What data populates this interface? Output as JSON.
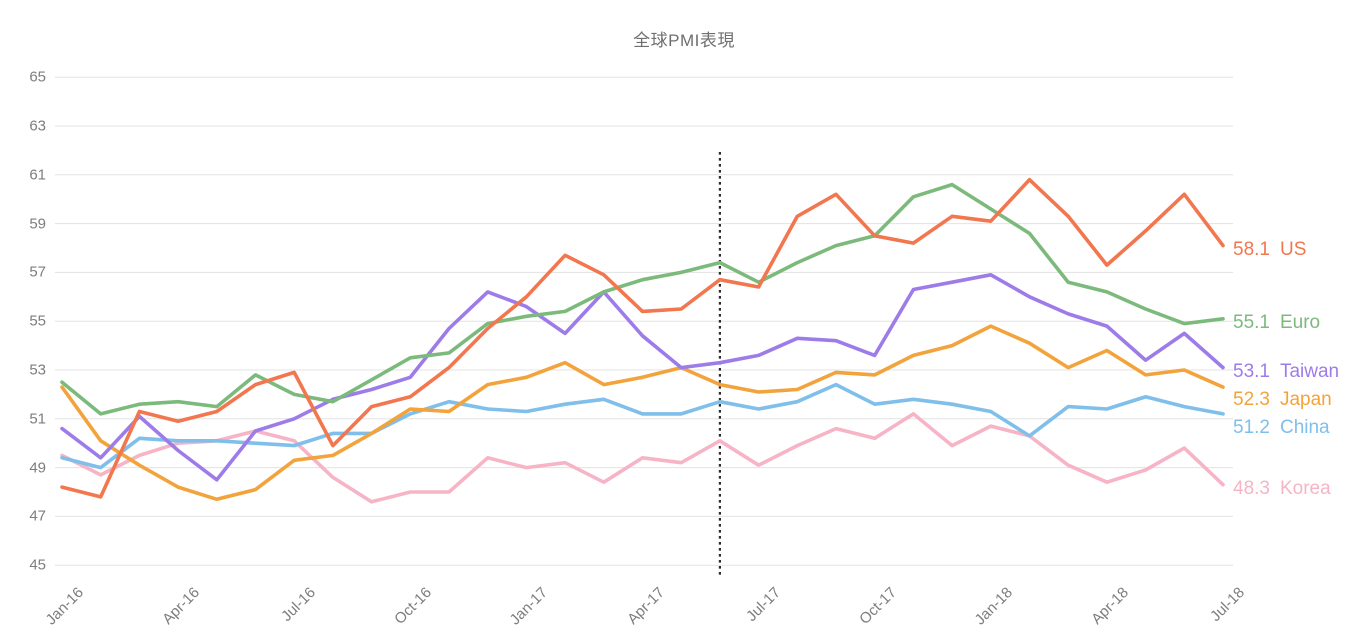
{
  "chart_title": "全球PMI表現",
  "chart_data": {
    "type": "line",
    "title": "全球PMI表現",
    "x": [
      "Jan-16",
      "Feb-16",
      "Mar-16",
      "Apr-16",
      "May-16",
      "Jun-16",
      "Jul-16",
      "Aug-16",
      "Sep-16",
      "Oct-16",
      "Nov-16",
      "Dec-16",
      "Jan-17",
      "Feb-17",
      "Mar-17",
      "Apr-17",
      "May-17",
      "Jun-17",
      "Jul-17",
      "Aug-17",
      "Sep-17",
      "Oct-17",
      "Nov-17",
      "Dec-17",
      "Jan-18",
      "Feb-18",
      "Mar-18",
      "Apr-18",
      "May-18",
      "Jun-18",
      "Jul-18"
    ],
    "x_axis_tick_labels": [
      "Jan-16",
      "Apr-16",
      "Jul-16",
      "Oct-16",
      "Jan-17",
      "Apr-17",
      "Jul-17",
      "Oct-17",
      "Jan-18",
      "Apr-18",
      "Jul-18"
    ],
    "y_ticks": [
      45,
      47,
      49,
      51,
      53,
      55,
      57,
      59,
      61,
      63,
      65
    ],
    "ylim": [
      45,
      65
    ],
    "grid": "horizontal",
    "grid_color": "#e3e3e3",
    "tick_color": "#7d7d7d",
    "title_color": "#6f6f6f",
    "legend_position": "right-end-labels",
    "annotation_line": {
      "x": "Jun-17",
      "style": "dotted-vertical",
      "color": "#2b2b2b"
    },
    "series": [
      {
        "name": "US",
        "color": "#f2764e",
        "end_label": "58.1",
        "values": [
          48.2,
          47.8,
          51.3,
          50.9,
          51.3,
          52.4,
          52.9,
          49.9,
          51.5,
          51.9,
          53.1,
          54.7,
          56.0,
          57.7,
          56.9,
          55.4,
          55.5,
          56.7,
          56.4,
          59.3,
          60.2,
          58.5,
          58.2,
          59.3,
          59.1,
          60.8,
          59.3,
          57.3,
          58.7,
          60.2,
          58.1
        ]
      },
      {
        "name": "Euro",
        "color": "#7cba7c",
        "end_label": "55.1",
        "values": [
          52.5,
          51.2,
          51.6,
          51.7,
          51.5,
          52.8,
          52.0,
          51.7,
          52.6,
          53.5,
          53.7,
          54.9,
          55.2,
          55.4,
          56.2,
          56.7,
          57.0,
          57.4,
          56.6,
          57.4,
          58.1,
          58.5,
          60.1,
          60.6,
          59.6,
          58.6,
          56.6,
          56.2,
          55.5,
          54.9,
          55.1
        ]
      },
      {
        "name": "Taiwan",
        "color": "#9d7ce9",
        "end_label": "53.1",
        "values": [
          50.6,
          49.4,
          51.1,
          49.7,
          48.5,
          50.5,
          51.0,
          51.8,
          52.2,
          52.7,
          54.7,
          56.2,
          55.6,
          54.5,
          56.2,
          54.4,
          53.1,
          53.3,
          53.6,
          54.3,
          54.2,
          53.6,
          56.3,
          56.6,
          56.9,
          56.0,
          55.3,
          54.8,
          53.4,
          54.5,
          53.1
        ]
      },
      {
        "name": "Japan",
        "color": "#f3a33b",
        "end_label": "52.3",
        "values": [
          52.3,
          50.1,
          49.1,
          48.2,
          47.7,
          48.1,
          49.3,
          49.5,
          50.4,
          51.4,
          51.3,
          52.4,
          52.7,
          53.3,
          52.4,
          52.7,
          53.1,
          52.4,
          52.1,
          52.2,
          52.9,
          52.8,
          53.6,
          54.0,
          54.8,
          54.1,
          53.1,
          53.8,
          52.8,
          53.0,
          52.3
        ]
      },
      {
        "name": "China",
        "color": "#7fbfea",
        "end_label": "51.2",
        "values": [
          49.4,
          49.0,
          50.2,
          50.1,
          50.1,
          50.0,
          49.9,
          50.4,
          50.4,
          51.2,
          51.7,
          51.4,
          51.3,
          51.6,
          51.8,
          51.2,
          51.2,
          51.7,
          51.4,
          51.7,
          52.4,
          51.6,
          51.8,
          51.6,
          51.3,
          50.3,
          51.5,
          51.4,
          51.9,
          51.5,
          51.2
        ]
      },
      {
        "name": "Korea",
        "color": "#f6b4c6",
        "end_label": "48.3",
        "values": [
          49.5,
          48.7,
          49.5,
          50.0,
          50.1,
          50.5,
          50.1,
          48.6,
          47.6,
          48.0,
          48.0,
          49.4,
          49.0,
          49.2,
          48.4,
          49.4,
          49.2,
          50.1,
          49.1,
          49.9,
          50.6,
          50.2,
          51.2,
          49.9,
          50.7,
          50.3,
          49.1,
          48.4,
          48.9,
          49.8,
          48.3
        ]
      }
    ]
  }
}
